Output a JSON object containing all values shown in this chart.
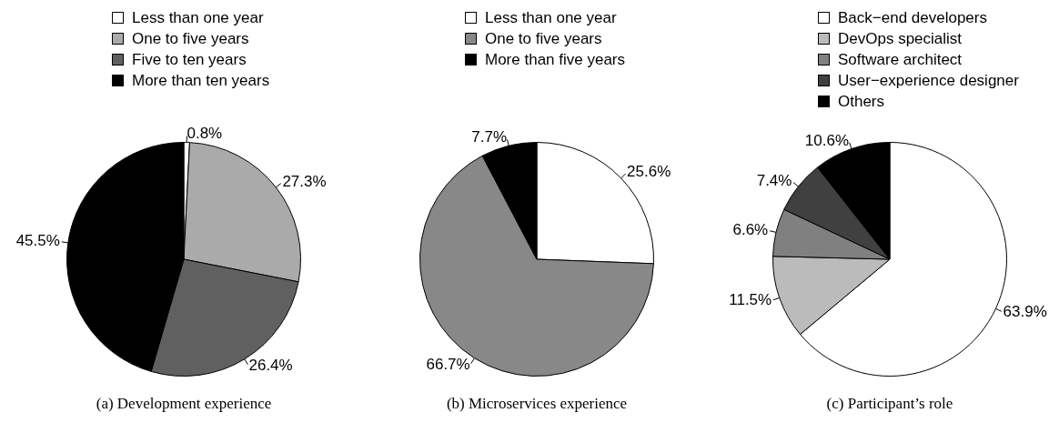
{
  "chart_data": [
    {
      "type": "pie",
      "categories": [
        "Less than one year",
        "One to five years",
        "Five to ten years",
        "More than ten years"
      ],
      "values": [
        0.8,
        27.3,
        26.4,
        45.5
      ],
      "colors": [
        "#ffffff",
        "#aaaaaa",
        "#606060",
        "#000000"
      ],
      "value_labels": [
        "0.8%",
        "27.3%",
        "26.4%",
        "45.5%"
      ],
      "legend": "top",
      "annotations": [
        "(a)  Development experience"
      ]
    },
    {
      "type": "pie",
      "categories": [
        "Less than one year",
        "One to five years",
        "More than five years"
      ],
      "values": [
        25.6,
        66.7,
        7.7
      ],
      "colors": [
        "#ffffff",
        "#888888",
        "#000000"
      ],
      "value_labels": [
        "25.6%",
        "66.7%",
        "7.7%"
      ],
      "legend": "top",
      "annotations": [
        "(b)  Microservices experience"
      ]
    },
    {
      "type": "pie",
      "categories": [
        "Back−end developers",
        "DevOps specialist",
        "Software architect",
        "User−experience designer",
        "Others"
      ],
      "values": [
        63.9,
        11.5,
        6.6,
        7.4,
        10.6
      ],
      "colors": [
        "#ffffff",
        "#bbbbbb",
        "#808080",
        "#404040",
        "#000000"
      ],
      "value_labels": [
        "63.9%",
        "11.5%",
        "6.6%",
        "7.4%",
        "10.6%"
      ],
      "legend": "top",
      "annotations": [
        "(c)  Participant’s role"
      ]
    }
  ]
}
